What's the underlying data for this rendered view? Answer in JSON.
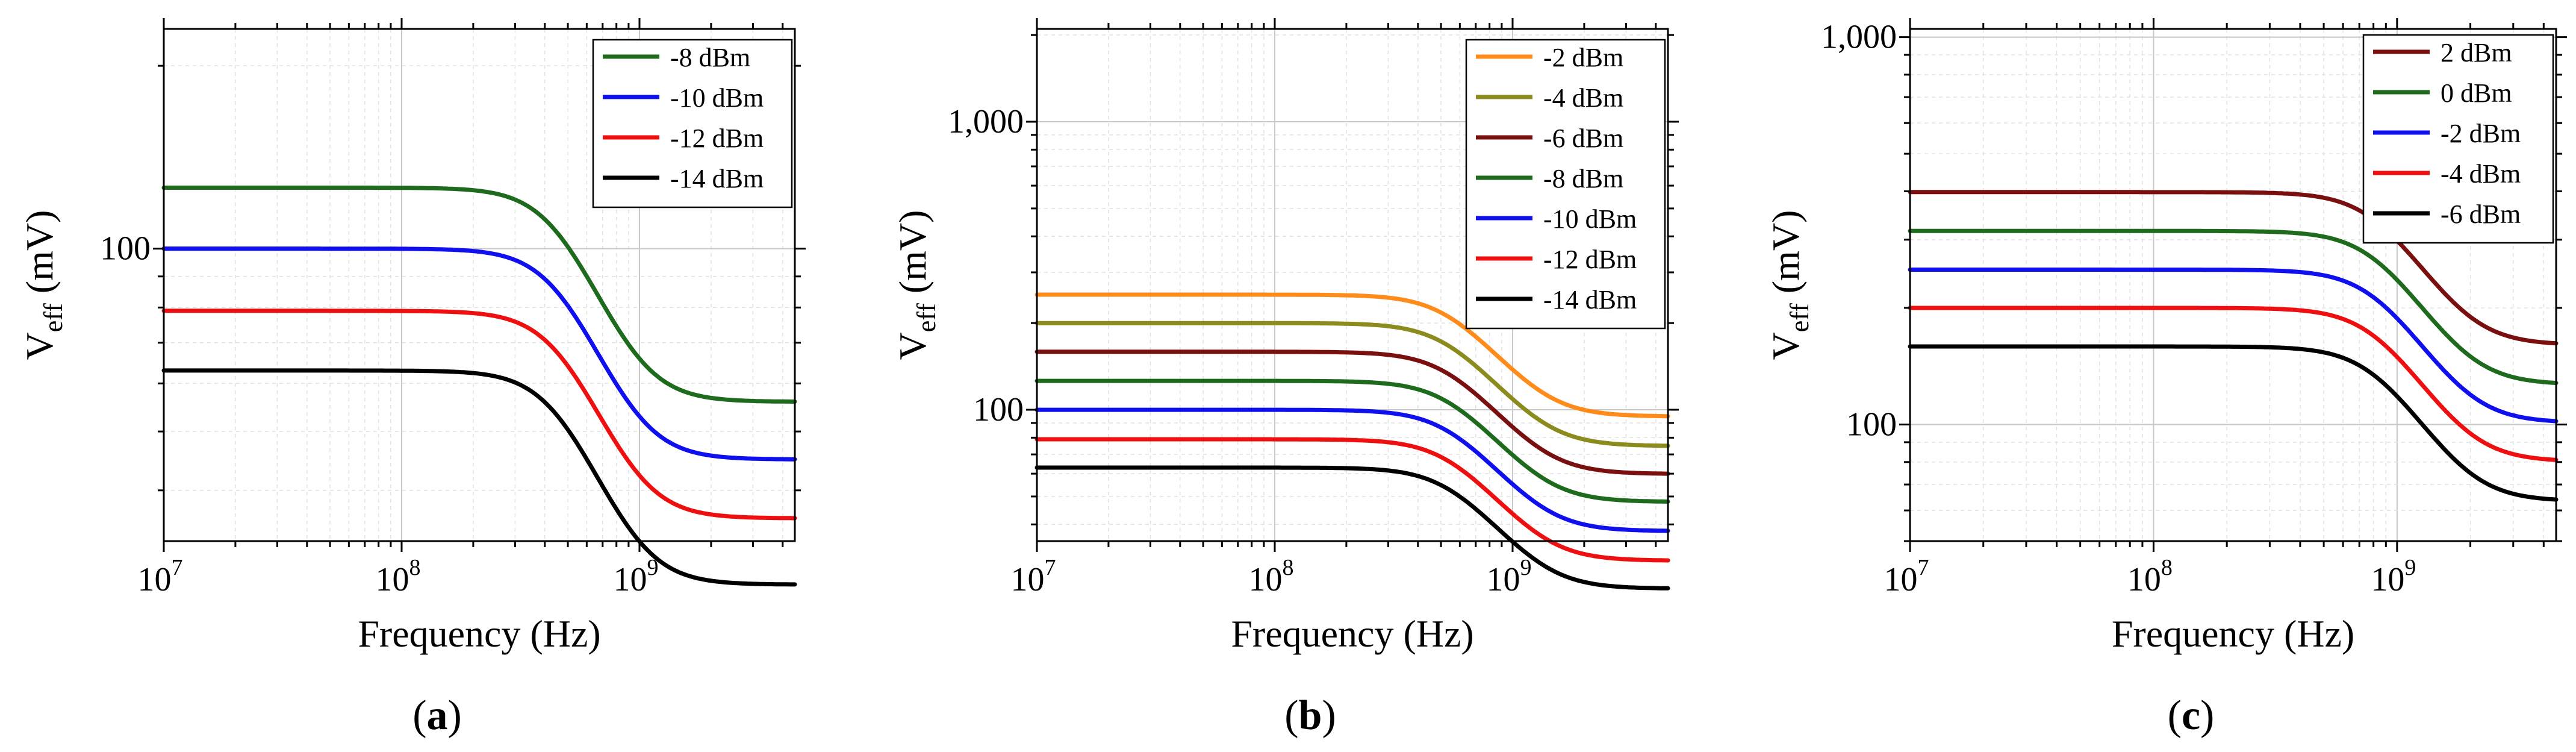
{
  "chart_data": [
    {
      "type": "line",
      "panel_label": "a",
      "xlabel": "Frequency (Hz)",
      "ylabel_main": "V",
      "ylabel_sub": "eff",
      "ylabel_unit": " (mV)",
      "x_scale": "log",
      "y_scale": "log",
      "xlim": [
        10000000,
        4500000000
      ],
      "ylim": [
        33,
        230
      ],
      "x_ticks": [
        {
          "value": 10000000,
          "base": "10",
          "exp": "7"
        },
        {
          "value": 100000000,
          "base": "10",
          "exp": "8"
        },
        {
          "value": 1000000000,
          "base": "10",
          "exp": "9"
        }
      ],
      "y_ticks": [
        {
          "value": 100,
          "label": "100"
        }
      ],
      "grid": true,
      "legend_position": "top-right",
      "cutoff_hz": 1000000000,
      "series": [
        {
          "name": "-8 dBm",
          "color": "#1e6b1e",
          "start_value": 126,
          "end_value": 56
        },
        {
          "name": "-10 dBm",
          "color": "#1010ee",
          "start_value": 100,
          "end_value": 45
        },
        {
          "name": "-12 dBm",
          "color": "#ee1010",
          "start_value": 79,
          "end_value": 36
        },
        {
          "name": "-14 dBm",
          "color": "#000000",
          "start_value": 63,
          "end_value": 28
        }
      ]
    },
    {
      "type": "line",
      "panel_label": "b",
      "xlabel": "Frequency (Hz)",
      "ylabel_main": "V",
      "ylabel_sub": "eff",
      "ylabel_unit": " (mV)",
      "x_scale": "log",
      "y_scale": "log",
      "xlim": [
        10000000,
        4500000000
      ],
      "ylim": [
        35,
        2100
      ],
      "x_ticks": [
        {
          "value": 10000000,
          "base": "10",
          "exp": "7"
        },
        {
          "value": 100000000,
          "base": "10",
          "exp": "8"
        },
        {
          "value": 1000000000,
          "base": "10",
          "exp": "9"
        }
      ],
      "y_ticks": [
        {
          "value": 100,
          "label": "100"
        },
        {
          "value": 1000,
          "label": "1,000"
        }
      ],
      "grid": true,
      "legend_position": "top-right",
      "cutoff_hz": 1400000000,
      "series": [
        {
          "name": "-2 dBm",
          "color": "#ff8c1a",
          "start_value": 251,
          "end_value": 95
        },
        {
          "name": "-4 dBm",
          "color": "#8c8c1e",
          "start_value": 200,
          "end_value": 75
        },
        {
          "name": "-6 dBm",
          "color": "#7a0f0f",
          "start_value": 159,
          "end_value": 60
        },
        {
          "name": "-8 dBm",
          "color": "#1e6b1e",
          "start_value": 126,
          "end_value": 48
        },
        {
          "name": "-10 dBm",
          "color": "#1010ee",
          "start_value": 100,
          "end_value": 38
        },
        {
          "name": "-12 dBm",
          "color": "#ee1010",
          "start_value": 79,
          "end_value": 30
        },
        {
          "name": "-14 dBm",
          "color": "#000000",
          "start_value": 63,
          "end_value": 24
        }
      ]
    },
    {
      "type": "line",
      "panel_label": "c",
      "xlabel": "Frequency (Hz)",
      "ylabel_main": "V",
      "ylabel_sub": "eff",
      "ylabel_unit": " (mV)",
      "x_scale": "log",
      "y_scale": "log",
      "xlim": [
        10000000,
        4500000000
      ],
      "ylim": [
        50,
        1050
      ],
      "x_ticks": [
        {
          "value": 10000000,
          "base": "10",
          "exp": "7"
        },
        {
          "value": 100000000,
          "base": "10",
          "exp": "8"
        },
        {
          "value": 1000000000,
          "base": "10",
          "exp": "9"
        }
      ],
      "y_ticks": [
        {
          "value": 100,
          "label": "100"
        },
        {
          "value": 1000,
          "label": "1,000"
        }
      ],
      "grid": true,
      "legend_position": "top-right",
      "cutoff_hz": 2000000000,
      "series": [
        {
          "name": "2 dBm",
          "color": "#7a0f0f",
          "start_value": 398,
          "end_value": 162
        },
        {
          "name": "0 dBm",
          "color": "#1e6b1e",
          "start_value": 316,
          "end_value": 128
        },
        {
          "name": "-2 dBm",
          "color": "#1010ee",
          "start_value": 251,
          "end_value": 102
        },
        {
          "name": "-4 dBm",
          "color": "#ee1010",
          "start_value": 200,
          "end_value": 81
        },
        {
          "name": "-6 dBm",
          "color": "#000000",
          "start_value": 159,
          "end_value": 64
        }
      ]
    }
  ]
}
